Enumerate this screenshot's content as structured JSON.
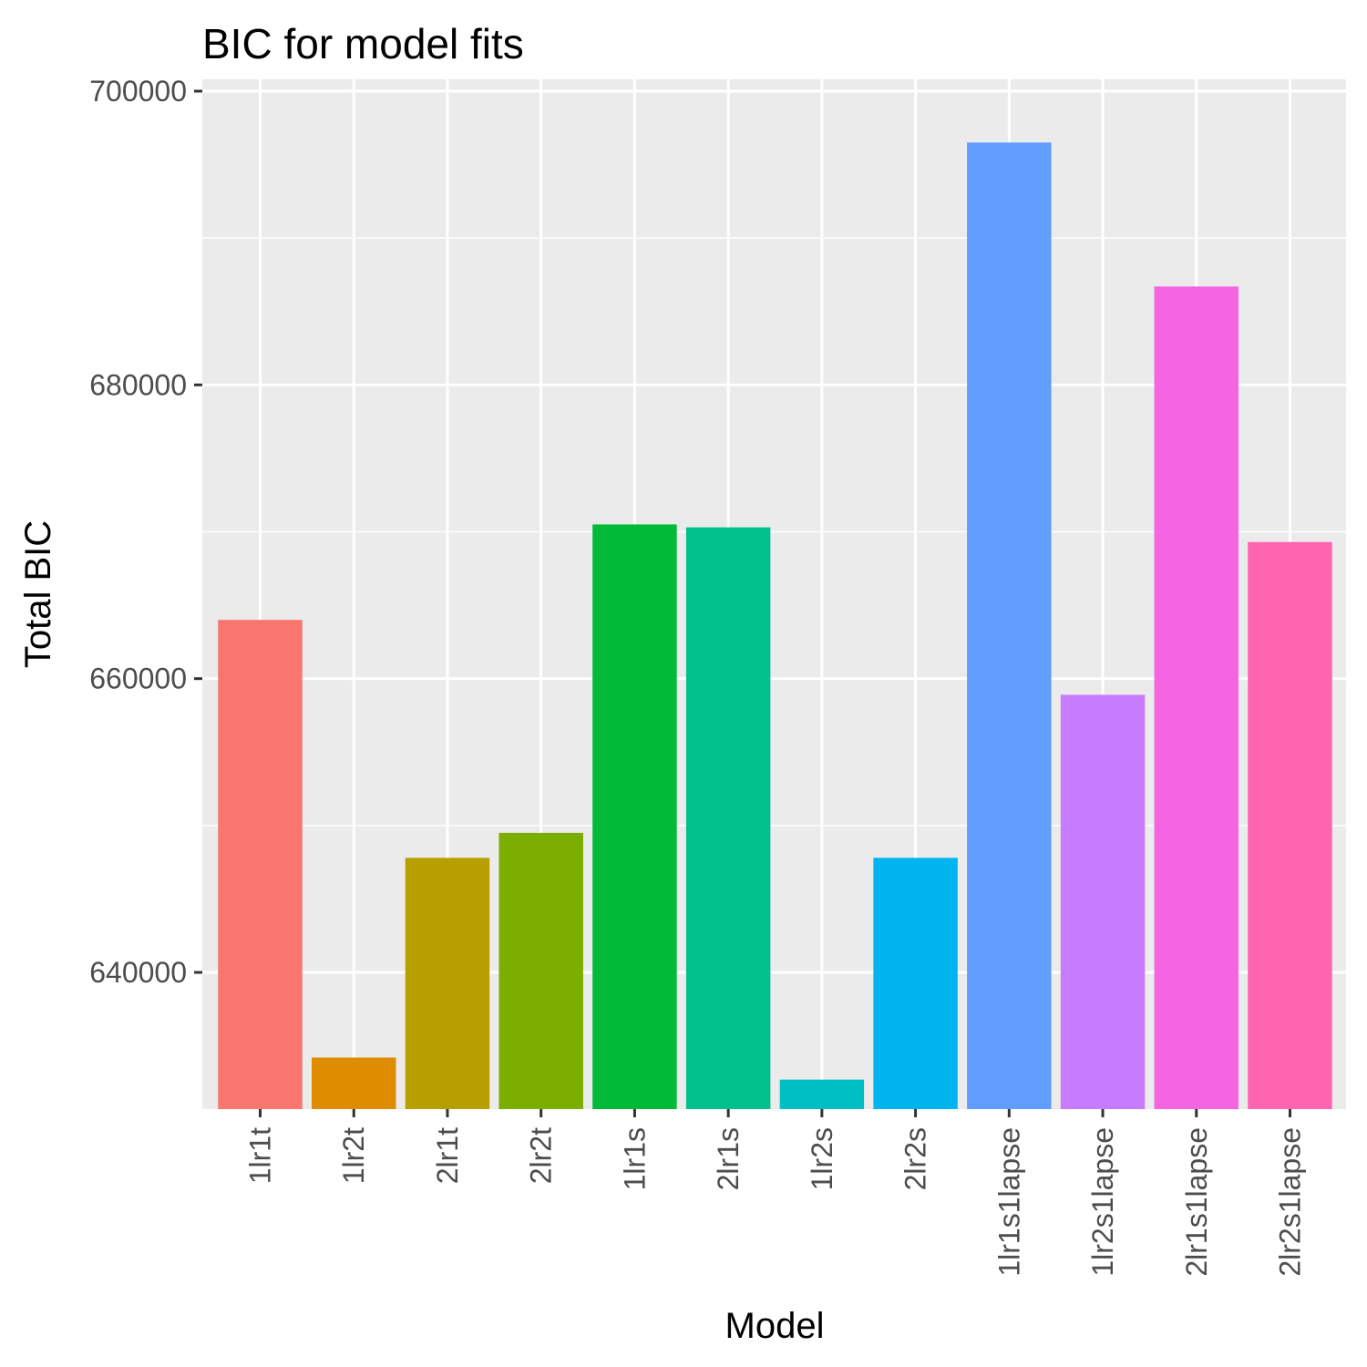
{
  "chart_data": {
    "type": "bar",
    "title": "BIC for model fits",
    "xlabel": "Model",
    "ylabel": "Total BIC",
    "categories": [
      "1lr1t",
      "1lr2t",
      "2lr1t",
      "2lr2t",
      "1lr1s",
      "2lr1s",
      "1lr2s",
      "2lr2s",
      "1lr1s1lapse",
      "1lr2s1lapse",
      "2lr1s1lapse",
      "2lr2s1lapse"
    ],
    "values": [
      664000,
      634200,
      647800,
      649500,
      670500,
      670300,
      632700,
      647800,
      696500,
      658900,
      686700,
      669300
    ],
    "colors": [
      "#F8766D",
      "#DE8C00",
      "#B79F00",
      "#7CAE00",
      "#00BA38",
      "#00C08B",
      "#00BFC4",
      "#00B4F0",
      "#619CFF",
      "#C77CFF",
      "#F564E3",
      "#FF64B0"
    ],
    "ylim": [
      625000,
      700000
    ],
    "yticks": [
      640000,
      660000,
      680000,
      700000
    ],
    "ytick_labels": [
      "640000",
      "660000",
      "680000",
      "700000"
    ],
    "grid": true,
    "legend": "none",
    "panel_background": "#EBEBEB"
  }
}
